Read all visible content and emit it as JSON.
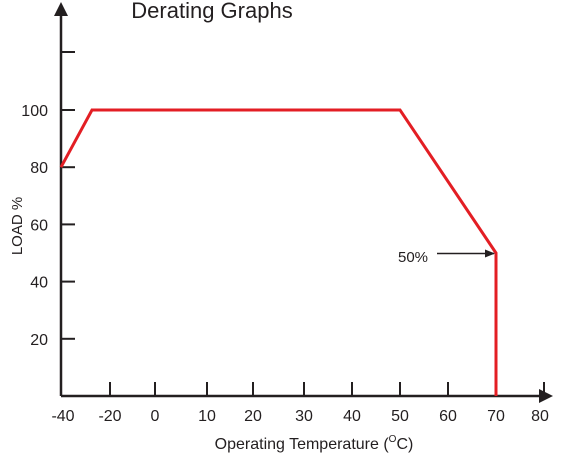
{
  "chart_data": {
    "type": "line",
    "title": "Derating Graphs",
    "xlabel": "Operating Temperature (",
    "xlabel_unit_sup": "O",
    "xlabel_unit": "C)",
    "ylabel": "LOAD %",
    "x_ticks": [
      -40,
      -20,
      0,
      10,
      20,
      30,
      40,
      50,
      60,
      70,
      80
    ],
    "x_tick_labels": [
      "-40",
      "-20",
      "0",
      "10",
      "20",
      "30",
      "40",
      "50",
      "60",
      "70",
      "80"
    ],
    "y_ticks": [
      20,
      40,
      60,
      80,
      100
    ],
    "y_tick_labels": [
      "20",
      "40",
      "60",
      "80",
      "100"
    ],
    "ylim": [
      0,
      120
    ],
    "series": [
      {
        "points": [
          [
            -40,
            80
          ],
          [
            -25,
            100
          ],
          [
            50,
            100
          ],
          [
            70,
            50
          ],
          [
            70,
            0
          ]
        ],
        "color": "#e31e24"
      }
    ],
    "annotation": {
      "text": "50%",
      "x": 70,
      "y": 50
    },
    "grid": false,
    "axis_color": "#231f20"
  }
}
